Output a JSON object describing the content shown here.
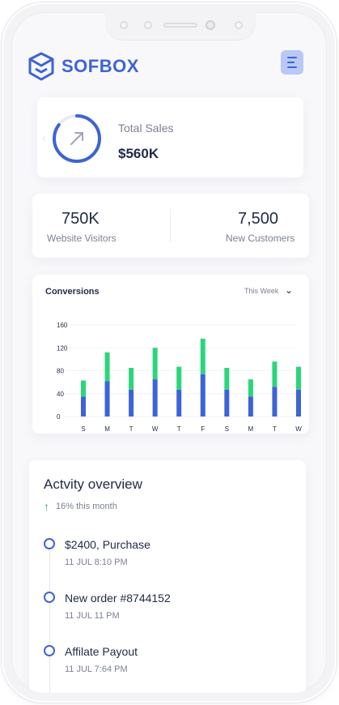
{
  "brand": {
    "name": "SOFBOX",
    "accent": "#3e63d6",
    "green": "#2bd67b"
  },
  "header": {
    "menu_icon": "hamburger-menu-icon"
  },
  "sales": {
    "label": "Total Sales",
    "value": "$560K",
    "icon": "trend-arrow-icon"
  },
  "stats": {
    "visitors": {
      "value": "750K",
      "label": "Website Visitors"
    },
    "customers": {
      "value": "7,500",
      "label": "New Customers"
    }
  },
  "conversions": {
    "title": "Conversions",
    "period": "This Week",
    "chart_data": {
      "type": "bar",
      "stacked": true,
      "categories": [
        "S",
        "M",
        "T",
        "W",
        "T",
        "F",
        "S",
        "M",
        "T",
        "W"
      ],
      "series": [
        {
          "color": "#3e63d6",
          "values": [
            35,
            62,
            47,
            65,
            47,
            74,
            47,
            35,
            52,
            47
          ]
        },
        {
          "color": "#2bd67b",
          "values": [
            28,
            50,
            38,
            55,
            40,
            62,
            38,
            30,
            44,
            40
          ]
        }
      ],
      "yticks": [
        0,
        40,
        80,
        120,
        160
      ],
      "ylim": [
        0,
        160
      ],
      "grid": true
    }
  },
  "activity": {
    "title": "Actvity overview",
    "trend": "16% this month",
    "items": [
      {
        "title": "$2400, Purchase",
        "date": "11 JUL 8:10 PM"
      },
      {
        "title": "New order #8744152",
        "date": "11 JUL 11 PM"
      },
      {
        "title": "Affilate Payout",
        "date": "11 JUL 7:64 PM"
      }
    ]
  }
}
